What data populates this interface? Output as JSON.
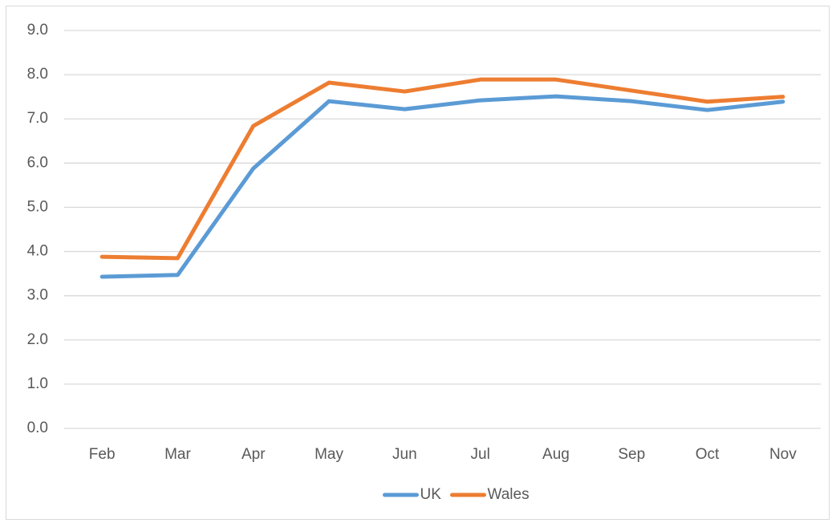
{
  "chart_data": {
    "type": "line",
    "categories": [
      "Feb",
      "Mar",
      "Apr",
      "May",
      "Jun",
      "Jul",
      "Aug",
      "Sep",
      "Oct",
      "Nov"
    ],
    "series": [
      {
        "name": "UK",
        "color": "#5b9bd5",
        "values": [
          3.43,
          3.47,
          5.88,
          7.4,
          7.22,
          7.42,
          7.51,
          7.4,
          7.2,
          7.39
        ]
      },
      {
        "name": "Wales",
        "color": "#ed7d31",
        "values": [
          3.88,
          3.85,
          6.84,
          7.82,
          7.62,
          7.89,
          7.89,
          7.64,
          7.39,
          7.5
        ]
      }
    ],
    "ylim": [
      0,
      9
    ],
    "yticks": [
      {
        "value": 0,
        "label": "0.0"
      },
      {
        "value": 1,
        "label": "1.0"
      },
      {
        "value": 2,
        "label": "2.0"
      },
      {
        "value": 3,
        "label": "3.0"
      },
      {
        "value": 4,
        "label": "4.0"
      },
      {
        "value": 5,
        "label": "5.0"
      },
      {
        "value": 6,
        "label": "6.0"
      },
      {
        "value": 7,
        "label": "7.0"
      },
      {
        "value": 8,
        "label": "8.0"
      },
      {
        "value": 9,
        "label": "9.0"
      }
    ],
    "grid": true,
    "legend": "bottom"
  }
}
